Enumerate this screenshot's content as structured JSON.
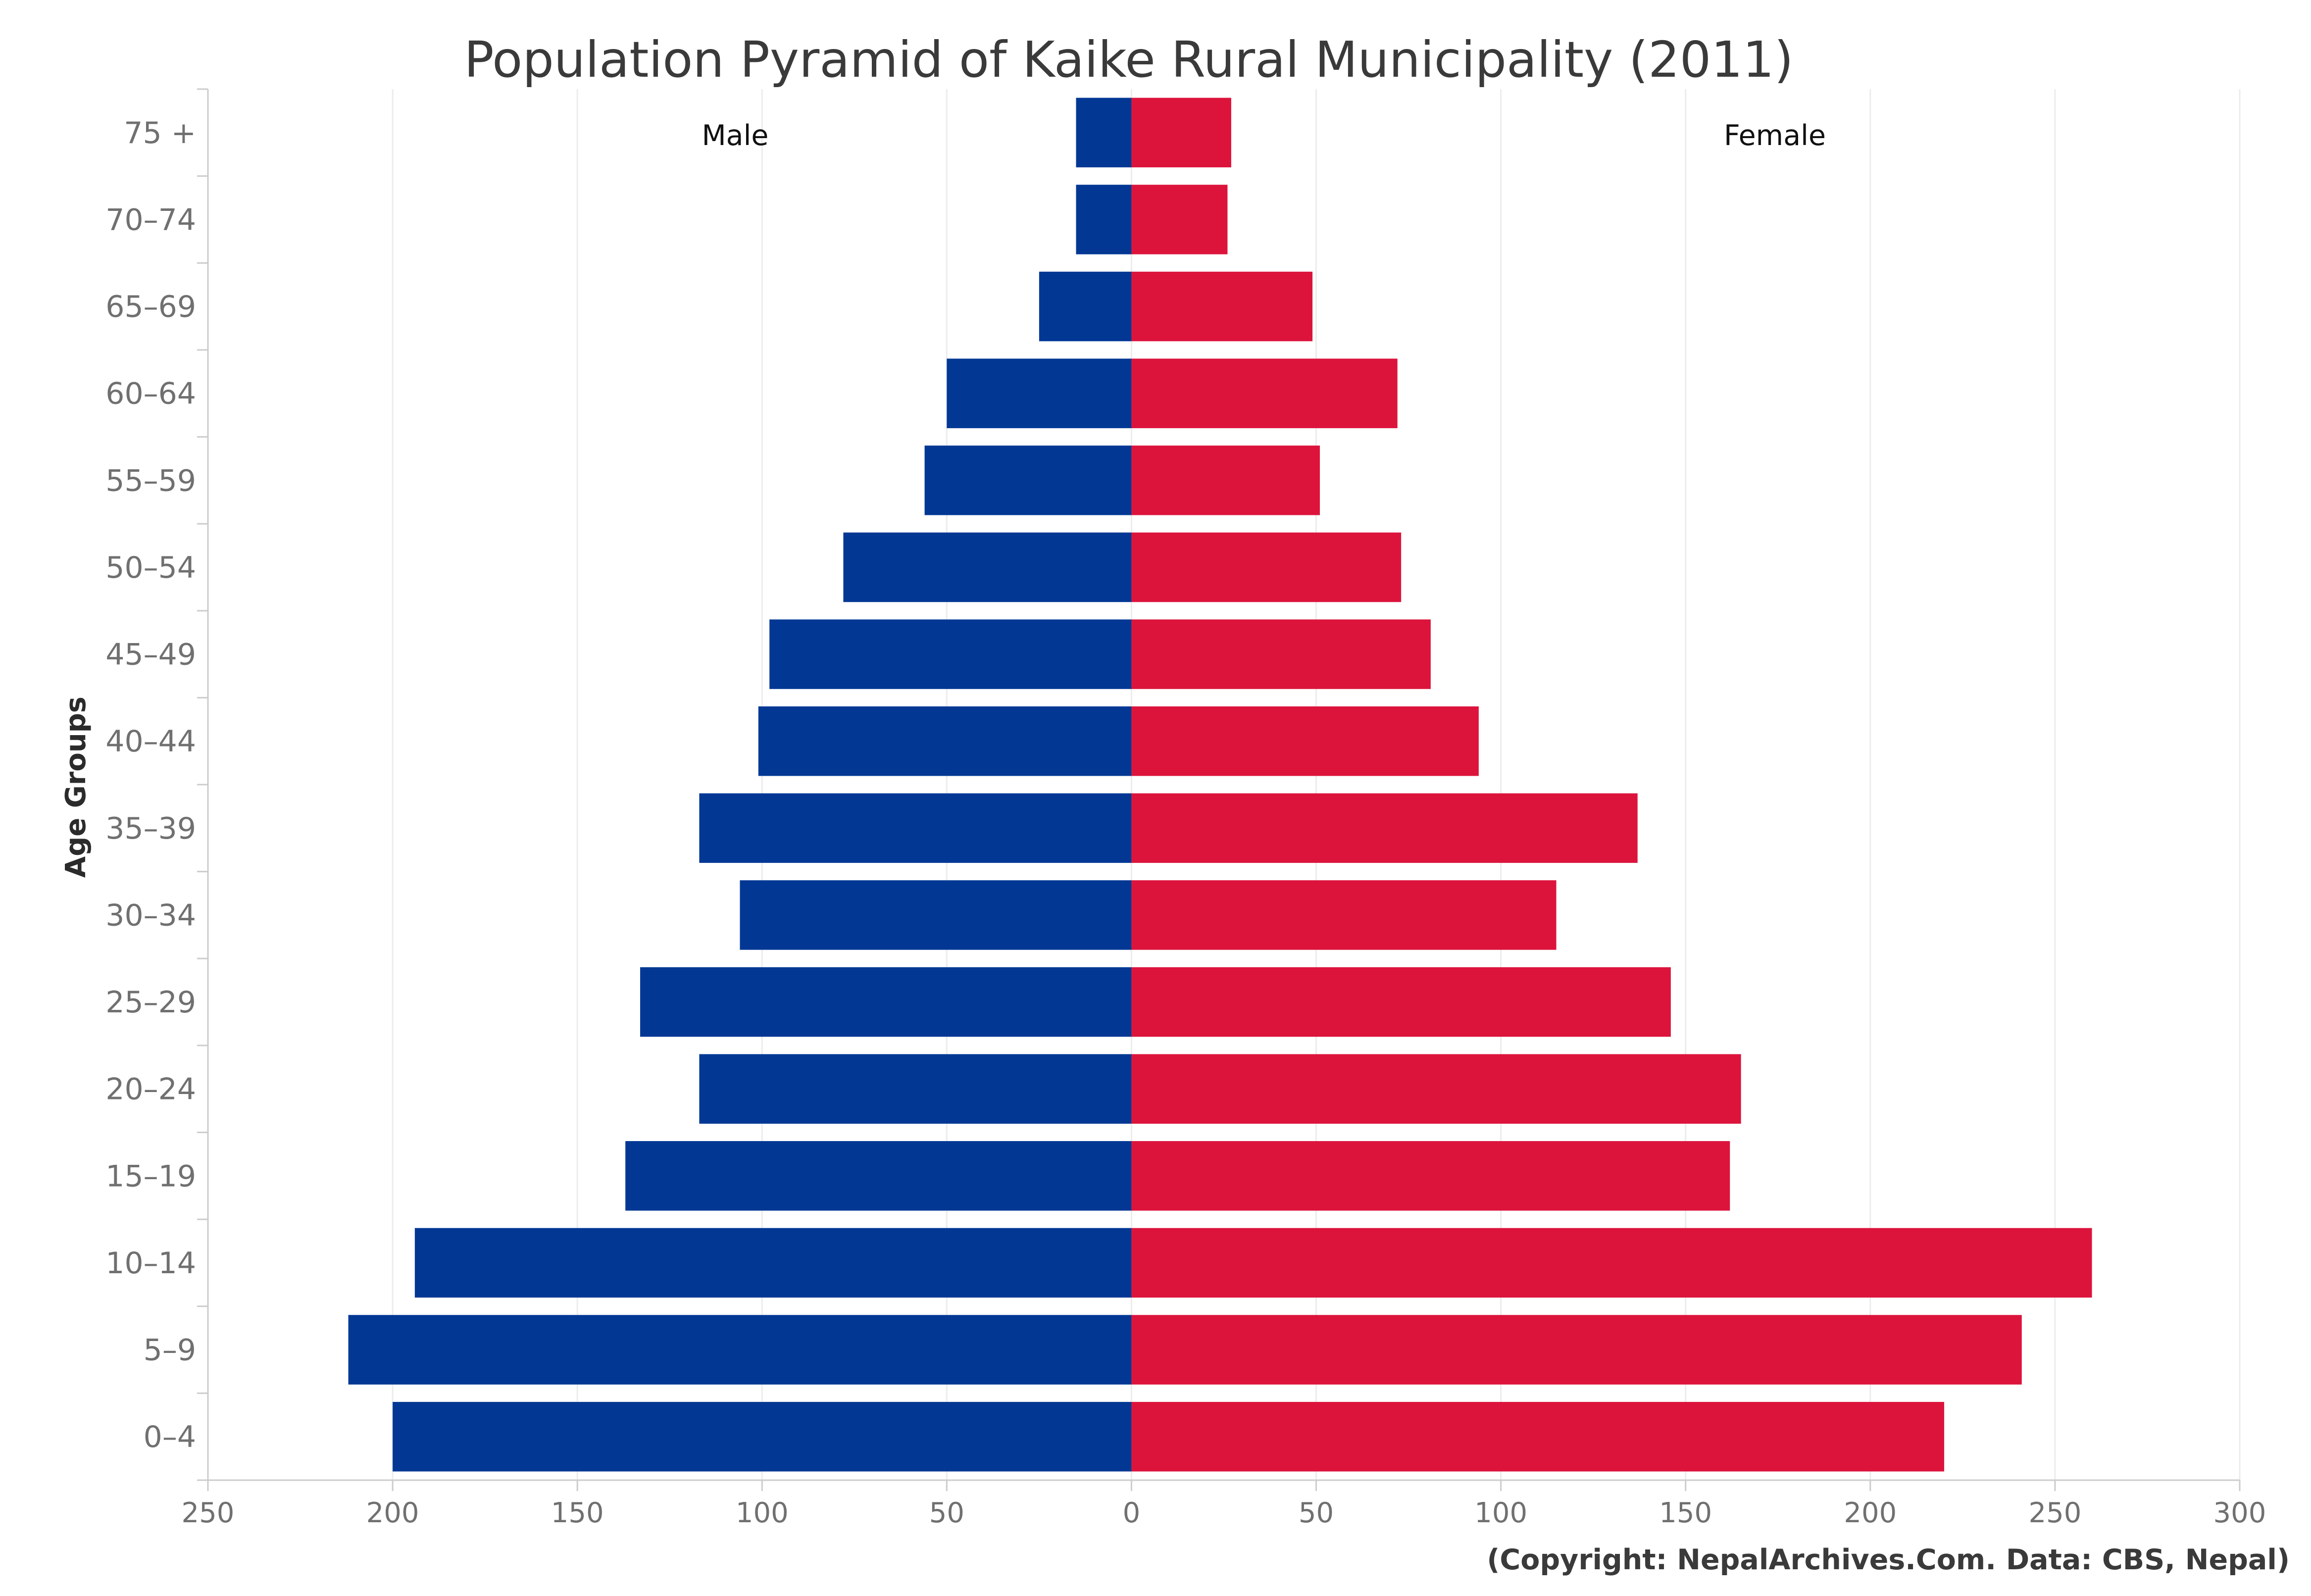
{
  "chart_data": {
    "type": "bar",
    "orientation": "horizontal",
    "title": "Population Pyramid of Kaike Rural Municipality (2011)",
    "ylabel": "Age Groups",
    "xlabel": "",
    "categories": [
      "0–4",
      "5–9",
      "10–14",
      "15–19",
      "20–24",
      "25–29",
      "30–34",
      "35–39",
      "40–44",
      "45–49",
      "50–54",
      "55–59",
      "60–64",
      "65–69",
      "70–74",
      "75 +"
    ],
    "series": [
      {
        "name": "Male",
        "color": "#023894",
        "values": [
          200,
          212,
          194,
          137,
          117,
          133,
          106,
          117,
          101,
          98,
          78,
          56,
          50,
          25,
          15,
          15
        ]
      },
      {
        "name": "Female",
        "color": "#dc143c",
        "values": [
          220,
          241,
          260,
          162,
          165,
          146,
          115,
          137,
          94,
          81,
          73,
          51,
          72,
          49,
          26,
          27
        ]
      }
    ],
    "xlim": [
      -250,
      300
    ],
    "xticks": [
      -250,
      -200,
      -150,
      -100,
      -50,
      0,
      50,
      100,
      150,
      200,
      250,
      300
    ],
    "xtick_labels": [
      "250",
      "200",
      "150",
      "100",
      "50",
      "0",
      "50",
      "100",
      "150",
      "200",
      "250",
      "300"
    ],
    "grid": true,
    "legend_placement": "series labels inside plot at top (Male left, Female right)"
  },
  "credit": "(Copyright: NepalArchives.Com. Data: CBS, Nepal)"
}
